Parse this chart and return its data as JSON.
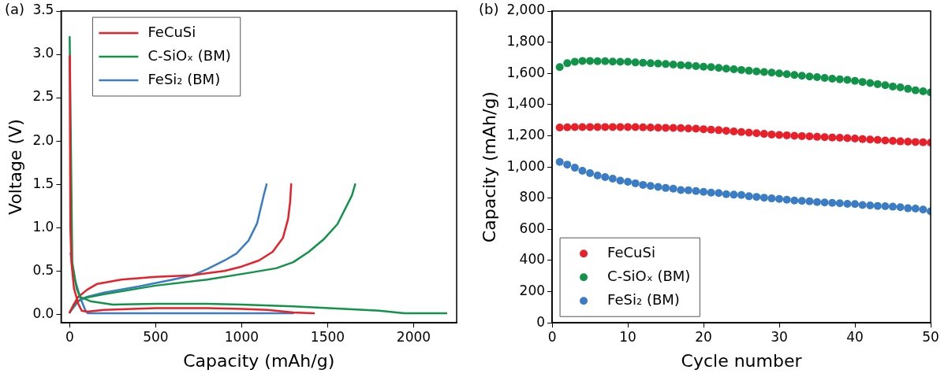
{
  "chart_data": [
    {
      "type": "line",
      "title": "(a)",
      "xlabel": "Capacity (mAh/g)",
      "ylabel": "Voltage (V)",
      "xlim": [
        -50,
        2250
      ],
      "xticks": [
        0,
        500,
        1000,
        1500,
        2000
      ],
      "ylim": [
        -0.1,
        3.5
      ],
      "yticks": [
        {
          "value": 0,
          "label": "0.0"
        },
        {
          "value": 0.5,
          "label": "0.5"
        },
        {
          "value": 1,
          "label": "1.0"
        },
        {
          "value": 1.5,
          "label": "1.5"
        },
        {
          "value": 2,
          "label": "2.0"
        },
        {
          "value": 2.5,
          "label": "2.5"
        },
        {
          "value": 3,
          "label": "3.0"
        },
        {
          "value": 3.5,
          "label": "3.5"
        }
      ],
      "grid": false,
      "legend": "top left",
      "marker": "none",
      "line_style": "solid",
      "series": [
        {
          "name": "FeCuSi",
          "color": "#e8202a",
          "x": [
            0,
            2,
            4,
            10,
            25,
            50,
            70,
            100,
            200,
            500,
            800,
            1000,
            1150,
            1300,
            1420
          ],
          "values": [
            2.98,
            2.0,
            1.0,
            0.6,
            0.3,
            0.12,
            0.04,
            0.03,
            0.05,
            0.07,
            0.07,
            0.06,
            0.05,
            0.02,
            0.01
          ]
        },
        {
          "name": "C-SiOₓ (BM)",
          "color": "#12934a",
          "x": [
            0,
            15,
            40,
            60,
            120,
            250,
            500,
            800,
            1000,
            1300,
            1600,
            1800,
            1950,
            2190
          ],
          "values": [
            3.2,
            0.6,
            0.3,
            0.2,
            0.15,
            0.11,
            0.12,
            0.12,
            0.11,
            0.09,
            0.06,
            0.04,
            0.01,
            0.01
          ]
        },
        {
          "name": "FeSi₂ (BM)",
          "color": "#3b7dc4",
          "x": [
            5,
            30,
            60,
            90,
            105,
            600,
            1300
          ],
          "values": [
            0.7,
            0.4,
            0.2,
            0.05,
            0.01,
            0.01,
            0.01
          ]
        },
        {
          "color": "#e8202a",
          "x": [
            0,
            20,
            50,
            100,
            160,
            300,
            500,
            715,
            900,
            1000,
            1100,
            1180,
            1240,
            1270,
            1282,
            1288
          ],
          "values": [
            0.02,
            0.1,
            0.2,
            0.28,
            0.35,
            0.4,
            0.43,
            0.45,
            0.5,
            0.55,
            0.62,
            0.72,
            0.88,
            1.1,
            1.3,
            1.5
          ]
        },
        {
          "color": "#12934a",
          "x": [
            0,
            30,
            70,
            200,
            500,
            800,
            1050,
            1200,
            1300,
            1390,
            1480,
            1557,
            1641,
            1660
          ],
          "values": [
            0.02,
            0.12,
            0.18,
            0.23,
            0.33,
            0.4,
            0.48,
            0.53,
            0.6,
            0.72,
            0.87,
            1.04,
            1.37,
            1.5
          ]
        },
        {
          "color": "#3b7dc4",
          "x": [
            0,
            50,
            100,
            200,
            400,
            600,
            715,
            800,
            900,
            970,
            1040,
            1090,
            1128,
            1145
          ],
          "values": [
            0.02,
            0.15,
            0.2,
            0.25,
            0.32,
            0.4,
            0.45,
            0.52,
            0.62,
            0.7,
            0.85,
            1.05,
            1.37,
            1.5
          ]
        }
      ]
    },
    {
      "type": "scatter",
      "title": "(b)",
      "xlabel": "Cycle number",
      "ylabel": "Capacity (mAh/g)",
      "xlim": [
        0,
        50
      ],
      "xticks": [
        0,
        10,
        20,
        30,
        40,
        50
      ],
      "ylim": [
        0,
        2000
      ],
      "yticks": [
        0,
        200,
        400,
        600,
        800,
        {
          "value": 1000,
          "label": "1,000"
        },
        {
          "value": 1200,
          "label": "1,200"
        },
        {
          "value": 1400,
          "label": "1,400"
        },
        {
          "value": 1600,
          "label": "1,600"
        },
        {
          "value": 1800,
          "label": "1,800"
        },
        {
          "value": 2000,
          "label": "2,000"
        }
      ],
      "grid": false,
      "legend": "bottom left",
      "marker": "circle",
      "x": [
        1,
        2,
        3,
        4,
        5,
        6,
        7,
        8,
        9,
        10,
        11,
        12,
        13,
        14,
        15,
        16,
        17,
        18,
        19,
        20,
        21,
        22,
        23,
        24,
        25,
        26,
        27,
        28,
        29,
        30,
        31,
        32,
        33,
        34,
        35,
        36,
        37,
        38,
        39,
        40,
        41,
        42,
        43,
        44,
        45,
        46,
        47,
        48,
        49,
        50
      ],
      "series": [
        {
          "name": "FeCuSi",
          "color": "#e8202a",
          "values": [
            1253,
            1254,
            1255,
            1255,
            1256,
            1256,
            1256,
            1256,
            1256,
            1256,
            1255,
            1254,
            1253,
            1252,
            1251,
            1250,
            1249,
            1247,
            1245,
            1242,
            1239,
            1236,
            1232,
            1228,
            1224,
            1220,
            1216,
            1212,
            1208,
            1205,
            1203,
            1200,
            1198,
            1196,
            1193,
            1191,
            1189,
            1187,
            1185,
            1182,
            1179,
            1176,
            1173,
            1170,
            1167,
            1164,
            1162,
            1160,
            1158,
            1156
          ]
        },
        {
          "name": "C-SiOₓ (BM)",
          "color": "#12934a",
          "values": [
            1640,
            1665,
            1675,
            1680,
            1680,
            1678,
            1678,
            1676,
            1674,
            1674,
            1670,
            1668,
            1665,
            1663,
            1660,
            1657,
            1653,
            1650,
            1647,
            1643,
            1640,
            1635,
            1630,
            1626,
            1622,
            1617,
            1613,
            1609,
            1605,
            1600,
            1595,
            1590,
            1585,
            1580,
            1576,
            1571,
            1566,
            1562,
            1558,
            1552,
            1545,
            1538,
            1531,
            1524,
            1516,
            1510,
            1501,
            1492,
            1485,
            1478
          ]
        },
        {
          "name": "FeSi₂ (BM)",
          "color": "#3b7dc4",
          "values": [
            1032,
            1015,
            995,
            975,
            960,
            945,
            935,
            925,
            912,
            905,
            895,
            885,
            878,
            872,
            865,
            860,
            852,
            850,
            845,
            840,
            835,
            833,
            825,
            822,
            820,
            812,
            808,
            803,
            798,
            795,
            790,
            785,
            782,
            780,
            775,
            772,
            770,
            767,
            763,
            762,
            756,
            753,
            750,
            748,
            745,
            742,
            735,
            733,
            727,
            715
          ]
        }
      ]
    }
  ]
}
